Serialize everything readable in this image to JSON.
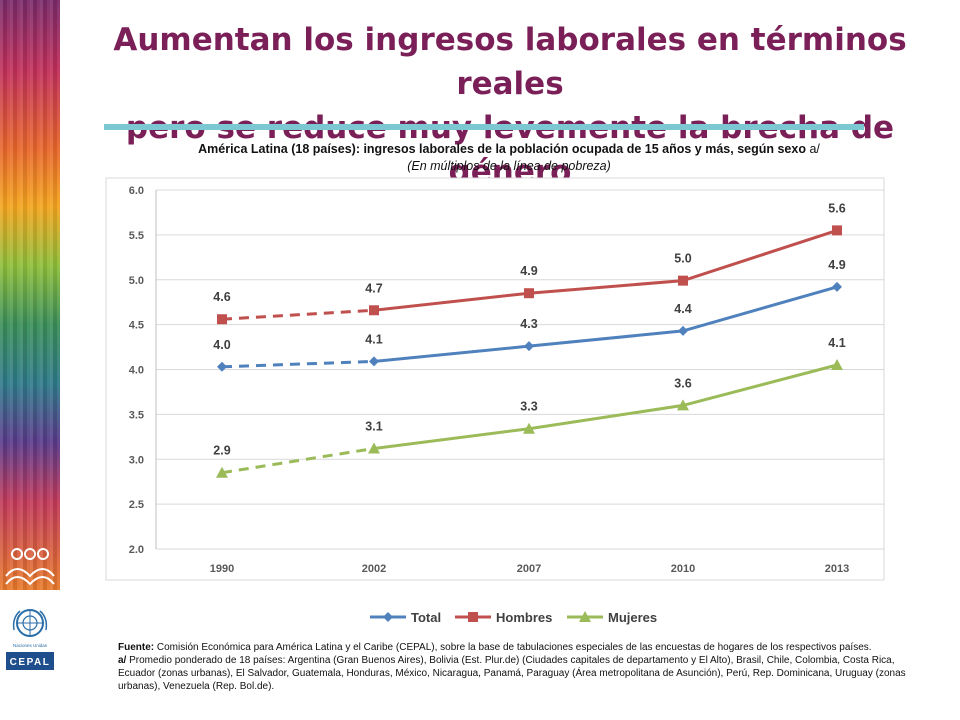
{
  "slide": {
    "title_line1": "Aumentan los ingresos laborales en términos reales",
    "title_line2": "pero se reduce muy levemente la brecha de género"
  },
  "chart_data": {
    "type": "line",
    "title": "América Latina (18 países): ingresos laborales de la población ocupada de 15 años y más, según sexo",
    "title_suffix": "a/",
    "subtitle": "(En múltiplos de la línea de pobreza)",
    "categories": [
      "1990",
      "2002",
      "2007",
      "2010",
      "2013"
    ],
    "ylim": [
      2.0,
      6.0
    ],
    "yticks": [
      "6.0",
      "5.5",
      "5.0",
      "4.5",
      "4.0",
      "3.5",
      "3.0",
      "2.5",
      "2.0"
    ],
    "legend_position": "bottom",
    "dashed_segment": "1990-2002",
    "series": [
      {
        "name": "Total",
        "marker": "diamond",
        "color": "#4f81bd",
        "values": [
          4.03,
          4.09,
          4.26,
          4.43,
          4.92
        ],
        "labels": [
          "4.0",
          "4.1",
          "4.3",
          "4.4",
          "4.9"
        ]
      },
      {
        "name": "Hombres",
        "marker": "square",
        "color": "#c0504d",
        "values": [
          4.56,
          4.66,
          4.85,
          4.99,
          5.55
        ],
        "labels": [
          "4.6",
          "4.7",
          "4.9",
          "5.0",
          "5.6"
        ]
      },
      {
        "name": "Mujeres",
        "marker": "triangle",
        "color": "#9bbb59",
        "values": [
          2.85,
          3.12,
          3.34,
          3.6,
          4.05
        ],
        "labels": [
          "2.9",
          "3.1",
          "3.3",
          "3.6",
          "4.1"
        ]
      }
    ]
  },
  "source": {
    "fuente_label": "Fuente:",
    "fuente_text": "Comisión Económica para América Latina y el Caribe (CEPAL), sobre la base de tabulaciones especiales de las encuestas de hogares de los respectivos países.",
    "note_label": "a/",
    "note_text": "Promedio ponderado de 18 países: Argentina (Gran Buenos Aires), Bolivia (Est. Plur.de) (Ciudades capitales de departamento y El Alto), Brasil, Chile, Colombia, Costa Rica, Ecuador (zonas urbanas), El Salvador, Guatemala, Honduras, México, Nicaragua, Panamá, Paraguay (Área metropolitana de Asunción), Perú, Rep. Dominicana, Uruguay (zonas urbanas), Venezuela (Rep. Bol.de)."
  },
  "logos": {
    "un_text": "Naciones Unidas",
    "cepal_text": "CEPAL"
  }
}
